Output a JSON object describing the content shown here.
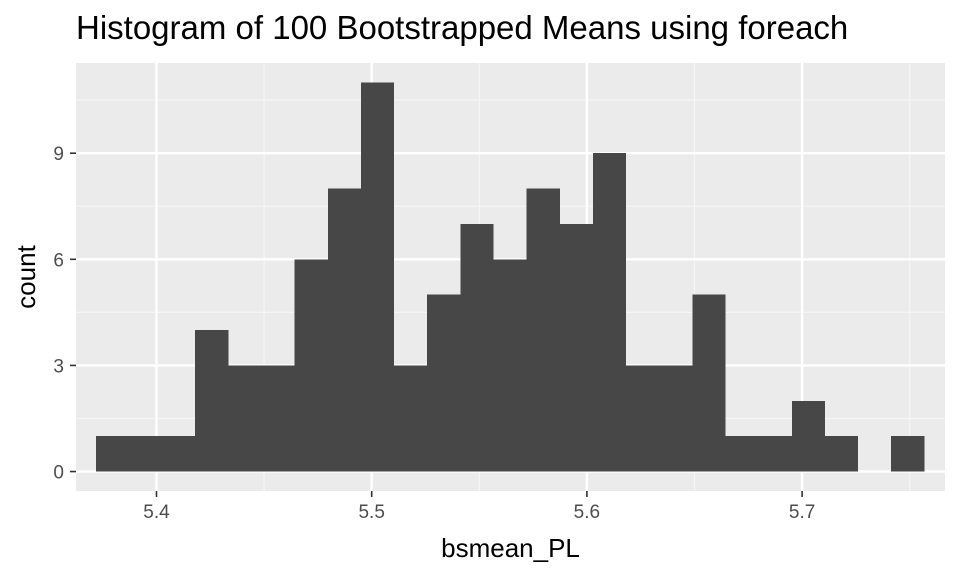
{
  "chart_data": {
    "type": "bar",
    "title": "Histogram of 100 Bootstrapped Means using foreach",
    "xlabel": "bsmean_PL",
    "ylabel": "count",
    "xlim": [
      5.3626,
      5.7664
    ],
    "ylim": [
      -0.55,
      11.55
    ],
    "x_ticks": [
      {
        "value": 5.4,
        "label": "5.4"
      },
      {
        "value": 5.5,
        "label": "5.5"
      },
      {
        "value": 5.6,
        "label": "5.6"
      },
      {
        "value": 5.7,
        "label": "5.7"
      }
    ],
    "y_ticks": [
      {
        "value": 0,
        "label": "0"
      },
      {
        "value": 3,
        "label": "3"
      },
      {
        "value": 6,
        "label": "6"
      },
      {
        "value": 9,
        "label": "9"
      }
    ],
    "bin_width": 0.0154,
    "bin_start": 5.3718,
    "counts": [
      1,
      1,
      1,
      4,
      3,
      3,
      6,
      8,
      11,
      3,
      5,
      7,
      6,
      8,
      7,
      9,
      3,
      3,
      5,
      1,
      1,
      2,
      1,
      0,
      1
    ],
    "grid": true,
    "legend": "none",
    "colors": {
      "panel_background": "#ebebeb",
      "grid_major": "#ffffff",
      "grid_minor": "#f5f5f5",
      "bar_fill": "#474747",
      "tick_color": "#333333",
      "tick_label": "#4d4d4d",
      "text": "#000000"
    }
  }
}
